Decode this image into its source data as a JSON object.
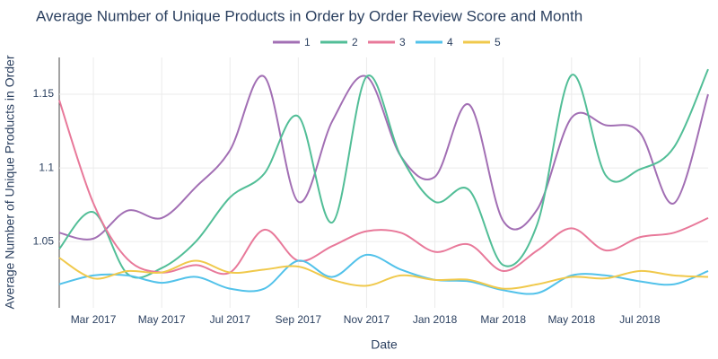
{
  "chart_data": {
    "type": "line",
    "title": "Average Number of Unique Products in Order by Order Review Score and Month",
    "x_label": "Date",
    "y_label": "Average Number of Unique Products in Order",
    "x": [
      "2017-02",
      "2017-03",
      "2017-04",
      "2017-05",
      "2017-06",
      "2017-07",
      "2017-08",
      "2017-09",
      "2017-10",
      "2017-11",
      "2017-12",
      "2018-01",
      "2018-02",
      "2018-03",
      "2018-04",
      "2018-05",
      "2018-06",
      "2018-07",
      "2018-08",
      "2018-09"
    ],
    "xticks": [
      {
        "value": "2017-03",
        "label": "Mar 2017"
      },
      {
        "value": "2017-05",
        "label": "May 2017"
      },
      {
        "value": "2017-07",
        "label": "Jul 2017"
      },
      {
        "value": "2017-09",
        "label": "Sep 2017"
      },
      {
        "value": "2017-11",
        "label": "Nov 2017"
      },
      {
        "value": "2018-01",
        "label": "Jan 2018"
      },
      {
        "value": "2018-03",
        "label": "Mar 2018"
      },
      {
        "value": "2018-05",
        "label": "May 2018"
      },
      {
        "value": "2018-07",
        "label": "Jul 2018"
      }
    ],
    "ylim": [
      1.005,
      1.175
    ],
    "yticks": [
      1.05,
      1.1,
      1.15
    ],
    "grid": true,
    "legend": "top",
    "series": [
      {
        "name": "1",
        "color": "#a26fb4",
        "values": [
          1.056,
          1.052,
          1.071,
          1.066,
          1.087,
          1.112,
          1.162,
          1.077,
          1.132,
          1.162,
          1.108,
          1.094,
          1.143,
          1.064,
          1.072,
          1.134,
          1.129,
          1.124,
          1.076,
          1.15
        ]
      },
      {
        "name": "2",
        "color": "#52be97",
        "values": [
          1.045,
          1.07,
          1.028,
          1.032,
          1.05,
          1.08,
          1.096,
          1.135,
          1.063,
          1.162,
          1.108,
          1.077,
          1.085,
          1.034,
          1.062,
          1.163,
          1.095,
          1.099,
          1.114,
          1.167
        ]
      },
      {
        "name": "3",
        "color": "#e8799a",
        "values": [
          1.146,
          1.076,
          1.038,
          1.029,
          1.034,
          1.029,
          1.058,
          1.037,
          1.047,
          1.057,
          1.056,
          1.043,
          1.048,
          1.03,
          1.044,
          1.059,
          1.044,
          1.053,
          1.056,
          1.066
        ]
      },
      {
        "name": "4",
        "color": "#52c2ea",
        "values": [
          1.021,
          1.027,
          1.027,
          1.022,
          1.026,
          1.018,
          1.018,
          1.037,
          1.026,
          1.041,
          1.031,
          1.024,
          1.023,
          1.017,
          1.015,
          1.027,
          1.027,
          1.023,
          1.021,
          1.03
        ]
      },
      {
        "name": "5",
        "color": "#f0c94c",
        "values": [
          1.039,
          1.025,
          1.03,
          1.029,
          1.037,
          1.029,
          1.031,
          1.033,
          1.024,
          1.02,
          1.027,
          1.024,
          1.024,
          1.018,
          1.021,
          1.026,
          1.025,
          1.03,
          1.027,
          1.026
        ]
      }
    ]
  }
}
